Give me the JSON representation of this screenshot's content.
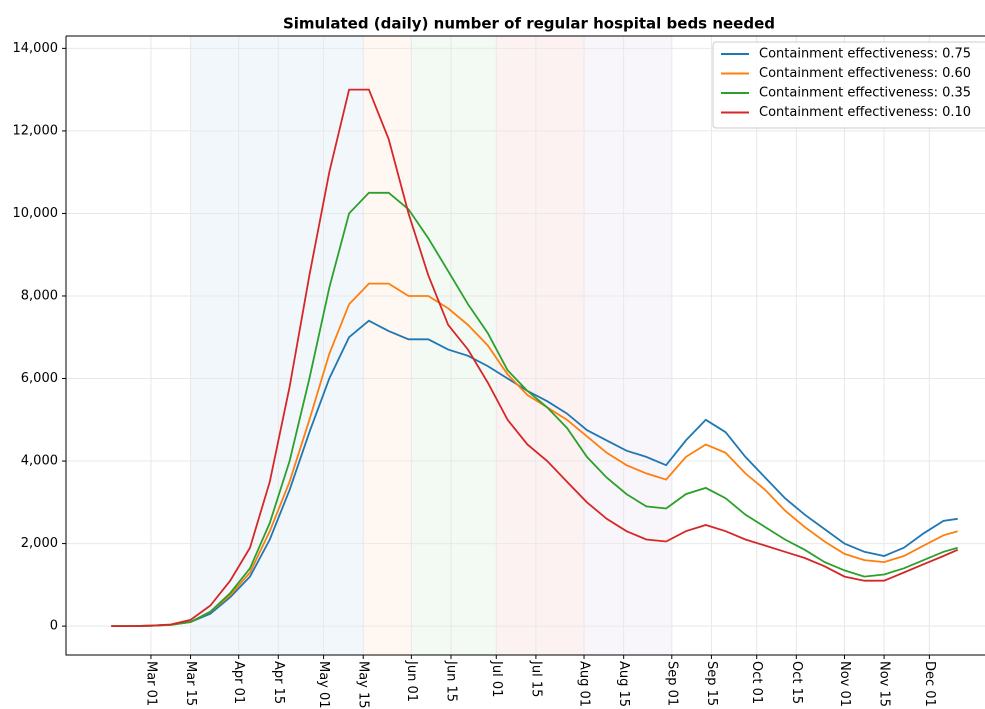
{
  "chart_data": {
    "type": "line",
    "title": "Simulated (daily) number of regular hospital beds needed",
    "x": [
      "Feb 16",
      "Feb 23",
      "Mar 01",
      "Mar 08",
      "Mar 15",
      "Mar 22",
      "Mar 29",
      "Apr 05",
      "Apr 12",
      "Apr 19",
      "Apr 26",
      "May 03",
      "May 10",
      "May 17",
      "May 24",
      "May 31",
      "Jun 07",
      "Jun 14",
      "Jun 21",
      "Jun 28",
      "Jul 05",
      "Jul 12",
      "Jul 19",
      "Jul 26",
      "Aug 02",
      "Aug 09",
      "Aug 16",
      "Aug 23",
      "Aug 30",
      "Sep 06",
      "Sep 13",
      "Sep 20",
      "Sep 27",
      "Oct 04",
      "Oct 11",
      "Oct 18",
      "Oct 25",
      "Nov 01",
      "Nov 08",
      "Nov 15",
      "Nov 22",
      "Nov 29",
      "Dec 06",
      "Dec 11"
    ],
    "series": [
      {
        "name": "Containment effectiveness: 0.75",
        "color": "#1f77b4",
        "values": [
          0,
          0,
          10,
          30,
          100,
          300,
          700,
          1200,
          2100,
          3300,
          4700,
          6000,
          7000,
          7400,
          7150,
          6950,
          6950,
          6700,
          6550,
          6300,
          6000,
          5700,
          5450,
          5150,
          4750,
          4500,
          4250,
          4100,
          3900,
          4500,
          5000,
          4700,
          4100,
          3600,
          3100,
          2700,
          2350,
          2000,
          1800,
          1700,
          1900,
          2250,
          2550,
          2600
        ]
      },
      {
        "name": "Containment effectiveness: 0.60",
        "color": "#ff7f0e",
        "values": [
          0,
          0,
          10,
          30,
          100,
          350,
          750,
          1300,
          2300,
          3500,
          5000,
          6600,
          7800,
          8300,
          8300,
          8000,
          8000,
          7700,
          7300,
          6800,
          6100,
          5600,
          5300,
          5000,
          4600,
          4200,
          3900,
          3700,
          3550,
          4100,
          4400,
          4200,
          3700,
          3300,
          2800,
          2400,
          2050,
          1750,
          1600,
          1550,
          1700,
          1950,
          2200,
          2300
        ]
      },
      {
        "name": "Containment effectiveness: 0.35",
        "color": "#2ca02c",
        "values": [
          0,
          0,
          10,
          30,
          100,
          350,
          800,
          1400,
          2500,
          4000,
          6000,
          8200,
          10000,
          10500,
          10500,
          10100,
          9400,
          8600,
          7800,
          7100,
          6200,
          5700,
          5300,
          4800,
          4100,
          3600,
          3200,
          2900,
          2850,
          3200,
          3350,
          3100,
          2700,
          2400,
          2100,
          1850,
          1550,
          1350,
          1200,
          1250,
          1400,
          1600,
          1800,
          1900
        ]
      },
      {
        "name": "Containment effectiveness: 0.10",
        "color": "#d62728",
        "values": [
          0,
          0,
          10,
          40,
          150,
          500,
          1100,
          1900,
          3500,
          5800,
          8500,
          11000,
          13000,
          13000,
          11800,
          10000,
          8500,
          7300,
          6700,
          5900,
          5000,
          4400,
          4000,
          3500,
          3000,
          2600,
          2300,
          2100,
          2050,
          2300,
          2450,
          2300,
          2100,
          1950,
          1800,
          1650,
          1450,
          1200,
          1100,
          1100,
          1300,
          1500,
          1700,
          1850
        ]
      }
    ],
    "periods": [
      {
        "start": "Mar 15",
        "end": "May 15",
        "color": "#1f77b4"
      },
      {
        "start": "May 15",
        "end": "Jun 01",
        "color": "#ff7f0e"
      },
      {
        "start": "Jun 01",
        "end": "Jul 01",
        "color": "#2ca02c"
      },
      {
        "start": "Jul 01",
        "end": "Aug 01",
        "color": "#d62728"
      },
      {
        "start": "Aug 01",
        "end": "Sep 01",
        "color": "#9467bd"
      }
    ],
    "xlim": [
      "Jan 31",
      "Dec 21"
    ],
    "xticks": [
      "Mar 01",
      "Mar 15",
      "Apr 01",
      "Apr 15",
      "May 01",
      "May 15",
      "Jun 01",
      "Jun 15",
      "Jul 01",
      "Jul 15",
      "Aug 01",
      "Aug 15",
      "Sep 01",
      "Sep 15",
      "Oct 01",
      "Oct 15",
      "Nov 01",
      "Nov 15",
      "Dec 01"
    ],
    "ylim": [
      -700,
      14300
    ],
    "yticks": [
      0,
      {
        "value": 2000,
        "label": "2,000"
      },
      {
        "value": 4000,
        "label": "4,000"
      },
      {
        "value": 6000,
        "label": "6,000"
      },
      {
        "value": 8000,
        "label": "8,000"
      },
      {
        "value": 10000,
        "label": "10,000"
      },
      {
        "value": 12000,
        "label": "12,000"
      },
      {
        "value": 14000,
        "label": "14,000"
      }
    ],
    "grid": true,
    "legend": "upper right"
  }
}
